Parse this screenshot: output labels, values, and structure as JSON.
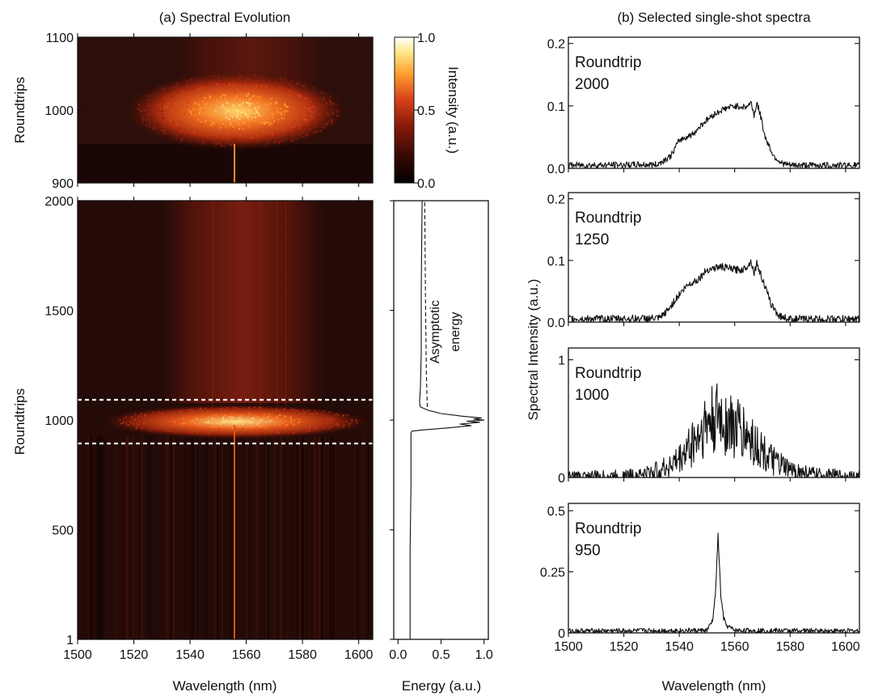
{
  "chart_data": [
    {
      "type": "heatmap",
      "panel_id": "a-top",
      "title": "(a) Spectral Evolution",
      "xlabel": "",
      "ylabel": "Roundtrips",
      "xlim": [
        1500,
        1605
      ],
      "ylim": [
        900,
        1100
      ],
      "yticks": [
        "900",
        "1000",
        "1100"
      ],
      "colormap": [
        "#000000",
        "#3d0a05",
        "#8c1b0a",
        "#d9451a",
        "#ff9f2e",
        "#ffe98a",
        "#ffffff"
      ],
      "features": {
        "burst_center_nm": 1557,
        "burst_roundtrip": 1000,
        "burst_start_roundtrip": 955,
        "burst_end_roundtrip": 1060,
        "narrow_line_nm": 1556
      }
    },
    {
      "type": "heatmap",
      "panel_id": "a-main",
      "xlabel": "Wavelength (nm)",
      "ylabel": "Roundtrips",
      "xlim": [
        1500,
        1605
      ],
      "ylim": [
        1,
        2000
      ],
      "xticks": [
        "1500",
        "1520",
        "1540",
        "1560",
        "1580",
        "1600"
      ],
      "yticks": [
        "1",
        "500",
        "1000",
        "1500",
        "2000"
      ],
      "dashed_lines_roundtrips": [
        900,
        1100
      ],
      "features": {
        "burst_center_nm": 1557,
        "burst_roundtrip": 1000,
        "after_burst_band_nm": [
          1540,
          1578
        ],
        "narrow_line_nm": 1556
      }
    },
    {
      "type": "colorbar",
      "panel_id": "colorbar",
      "label": "Intensity (a.u.)",
      "range": [
        0.0,
        1.0
      ],
      "ticks": [
        "0.0",
        "0.5",
        "1.0"
      ]
    },
    {
      "type": "line",
      "panel_id": "energy",
      "xlabel": "Energy (a.u.)",
      "xlim": [
        -0.05,
        1.05
      ],
      "ylim": [
        1,
        2000
      ],
      "xticks": [
        "0.0",
        "0.5",
        "1.0"
      ],
      "annotation": [
        "Asymptotic",
        "energy"
      ],
      "series": [
        {
          "style": "solid",
          "points": [
            [
              0.14,
              1
            ],
            [
              0.14,
              400
            ],
            [
              0.15,
              700
            ],
            [
              0.15,
              900
            ],
            [
              0.15,
              940
            ],
            [
              0.16,
              950
            ],
            [
              0.28,
              955
            ],
            [
              0.6,
              965
            ],
            [
              0.85,
              975
            ],
            [
              0.72,
              982
            ],
            [
              0.95,
              990
            ],
            [
              0.8,
              995
            ],
            [
              1.0,
              1000
            ],
            [
              0.88,
              1005
            ],
            [
              0.97,
              1010
            ],
            [
              0.75,
              1018
            ],
            [
              0.5,
              1030
            ],
            [
              0.35,
              1045
            ],
            [
              0.26,
              1060
            ],
            [
              0.25,
              1080
            ],
            [
              0.26,
              1150
            ],
            [
              0.27,
              1300
            ],
            [
              0.27,
              1600
            ],
            [
              0.28,
              2000
            ]
          ]
        },
        {
          "style": "dashed",
          "points": [
            [
              0.34,
              1060
            ],
            [
              0.33,
              1200
            ],
            [
              0.32,
              1500
            ],
            [
              0.31,
              2000
            ]
          ]
        }
      ]
    },
    {
      "type": "line",
      "panel_id": "b1",
      "title": "(b) Selected single-shot spectra",
      "annotation": [
        "Roundtrip",
        "2000"
      ],
      "xlim": [
        1500,
        1605
      ],
      "ylim": [
        0,
        0.21
      ],
      "yticks": [
        "0.0",
        "0.1",
        "0.2"
      ],
      "ytick_values": [
        0,
        0.1,
        0.2
      ],
      "profile": {
        "noise": 0.005,
        "points": [
          [
            1500,
            0.005
          ],
          [
            1532,
            0.006
          ],
          [
            1537,
            0.02
          ],
          [
            1540,
            0.045
          ],
          [
            1545,
            0.055
          ],
          [
            1548,
            0.07
          ],
          [
            1552,
            0.085
          ],
          [
            1556,
            0.095
          ],
          [
            1560,
            0.1
          ],
          [
            1564,
            0.098
          ],
          [
            1566,
            0.105
          ],
          [
            1567,
            0.085
          ],
          [
            1568,
            0.105
          ],
          [
            1569,
            0.09
          ],
          [
            1571,
            0.05
          ],
          [
            1574,
            0.02
          ],
          [
            1577,
            0.008
          ],
          [
            1580,
            0.005
          ],
          [
            1605,
            0.005
          ]
        ]
      }
    },
    {
      "type": "line",
      "panel_id": "b2",
      "annotation": [
        "Roundtrip",
        "1250"
      ],
      "xlim": [
        1500,
        1605
      ],
      "ylim": [
        0,
        0.21
      ],
      "yticks": [
        "0.0",
        "0.1",
        "0.2"
      ],
      "ytick_values": [
        0,
        0.1,
        0.2
      ],
      "profile": {
        "noise": 0.006,
        "points": [
          [
            1500,
            0.005
          ],
          [
            1533,
            0.006
          ],
          [
            1536,
            0.02
          ],
          [
            1540,
            0.045
          ],
          [
            1543,
            0.06
          ],
          [
            1547,
            0.07
          ],
          [
            1550,
            0.085
          ],
          [
            1555,
            0.09
          ],
          [
            1560,
            0.085
          ],
          [
            1563,
            0.085
          ],
          [
            1566,
            0.098
          ],
          [
            1567,
            0.08
          ],
          [
            1568,
            0.095
          ],
          [
            1570,
            0.07
          ],
          [
            1573,
            0.03
          ],
          [
            1576,
            0.01
          ],
          [
            1580,
            0.005
          ],
          [
            1605,
            0.005
          ]
        ]
      }
    },
    {
      "type": "line",
      "panel_id": "b3",
      "annotation": [
        "Roundtrip",
        "1000"
      ],
      "xlim": [
        1500,
        1605
      ],
      "ylim": [
        0,
        1.1
      ],
      "yticks": [
        "0",
        "1"
      ],
      "ytick_values": [
        0,
        1
      ],
      "profile": {
        "noise": 0.05,
        "noise_scales": true,
        "points": [
          [
            1500,
            0.005
          ],
          [
            1520,
            0.01
          ],
          [
            1528,
            0.03
          ],
          [
            1535,
            0.08
          ],
          [
            1540,
            0.15
          ],
          [
            1545,
            0.3
          ],
          [
            1550,
            0.45
          ],
          [
            1555,
            0.5
          ],
          [
            1558,
            0.45
          ],
          [
            1562,
            0.4
          ],
          [
            1567,
            0.3
          ],
          [
            1573,
            0.15
          ],
          [
            1580,
            0.06
          ],
          [
            1590,
            0.02
          ],
          [
            1600,
            0.01
          ],
          [
            1605,
            0.005
          ]
        ]
      }
    },
    {
      "type": "line",
      "panel_id": "b4",
      "annotation": [
        "Roundtrip",
        "950"
      ],
      "xlabel": "Wavelength (nm)",
      "xlim": [
        1500,
        1605
      ],
      "ylim": [
        0,
        0.53
      ],
      "yticks": [
        "0",
        "0.25",
        "0.5"
      ],
      "ytick_values": [
        0,
        0.25,
        0.5
      ],
      "xticks": [
        "1500",
        "1520",
        "1540",
        "1560",
        "1580",
        "1600"
      ],
      "xtick_values": [
        1500,
        1520,
        1540,
        1560,
        1580,
        1600
      ],
      "profile": {
        "noise": 0.01,
        "points": [
          [
            1500,
            0.008
          ],
          [
            1550,
            0.01
          ],
          [
            1552,
            0.05
          ],
          [
            1553,
            0.15
          ],
          [
            1554,
            0.4
          ],
          [
            1555,
            0.15
          ],
          [
            1556,
            0.06
          ],
          [
            1557,
            0.03
          ],
          [
            1560,
            0.01
          ],
          [
            1605,
            0.008
          ]
        ]
      }
    }
  ],
  "shared_ylabel": "Spectral Intensity (a.u.)"
}
